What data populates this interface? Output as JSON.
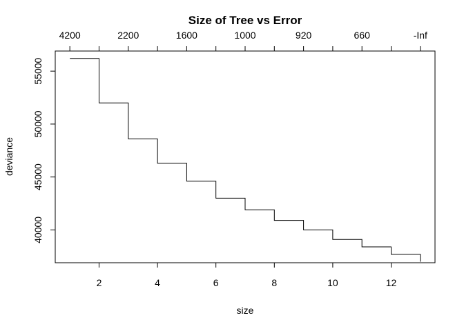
{
  "chart_data": {
    "type": "line",
    "step": true,
    "title": "Size of Tree vs Error",
    "xlabel": "size",
    "ylabel": "deviance",
    "xlim": [
      0.5,
      13.5
    ],
    "ylim": [
      36900,
      56900
    ],
    "x_ticks": [
      2,
      4,
      6,
      8,
      10,
      12
    ],
    "y_ticks": [
      40000,
      45000,
      50000,
      55000
    ],
    "top_axis": {
      "positions": [
        1,
        3,
        5,
        7,
        9,
        11,
        13
      ],
      "labels": [
        "4200",
        "2200",
        "1600",
        "1000",
        "920",
        "660",
        "-Inf"
      ],
      "tick_positions": [
        1,
        2,
        3,
        4,
        5,
        6,
        7,
        8,
        9,
        10,
        11,
        12,
        13
      ]
    },
    "series": [
      {
        "x": [
          1,
          2,
          3,
          4,
          5,
          6,
          7,
          8,
          9,
          10,
          11,
          12,
          13
        ],
        "values": [
          56200,
          52000,
          48600,
          46300,
          44600,
          43000,
          41900,
          40900,
          40000,
          39100,
          38400,
          37700,
          37000
        ]
      }
    ]
  }
}
